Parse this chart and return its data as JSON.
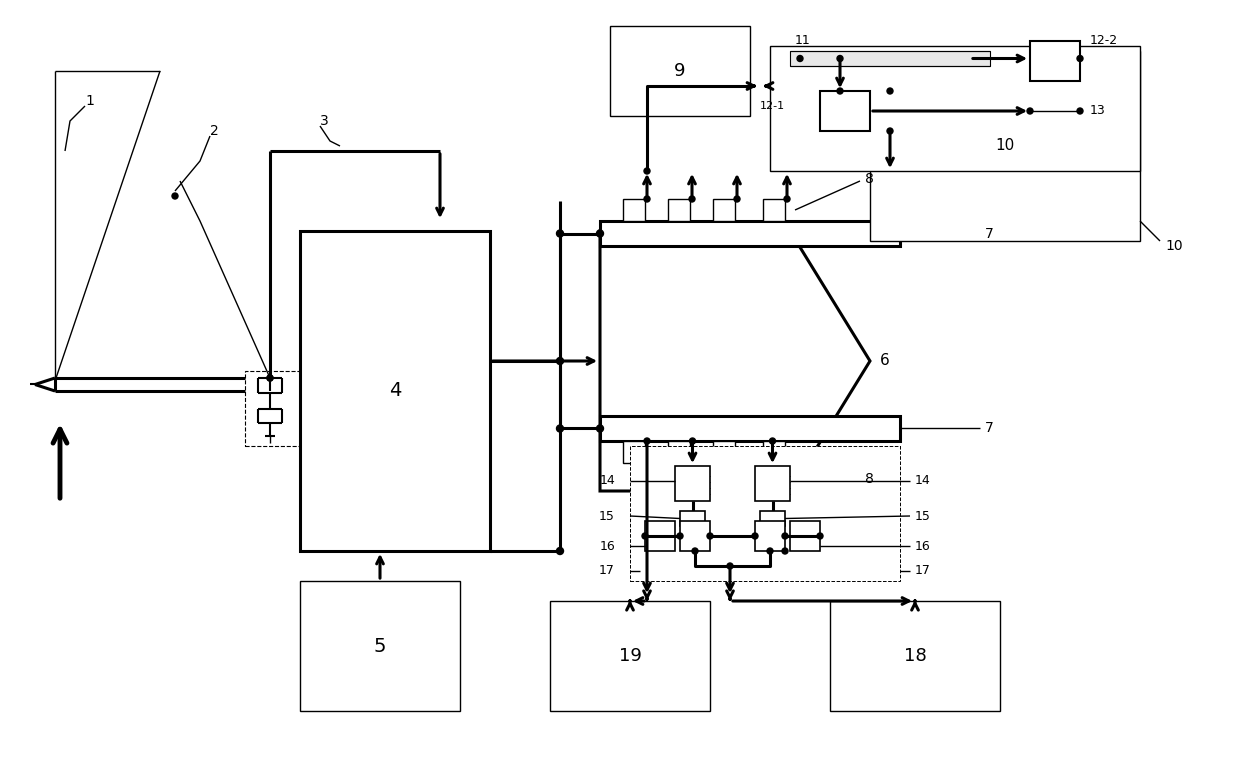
{
  "bg": "#ffffff",
  "lc": "#000000",
  "fig_w": 12.4,
  "fig_h": 7.71,
  "xlim": [
    0,
    124
  ],
  "ylim": [
    0,
    77.1
  ]
}
